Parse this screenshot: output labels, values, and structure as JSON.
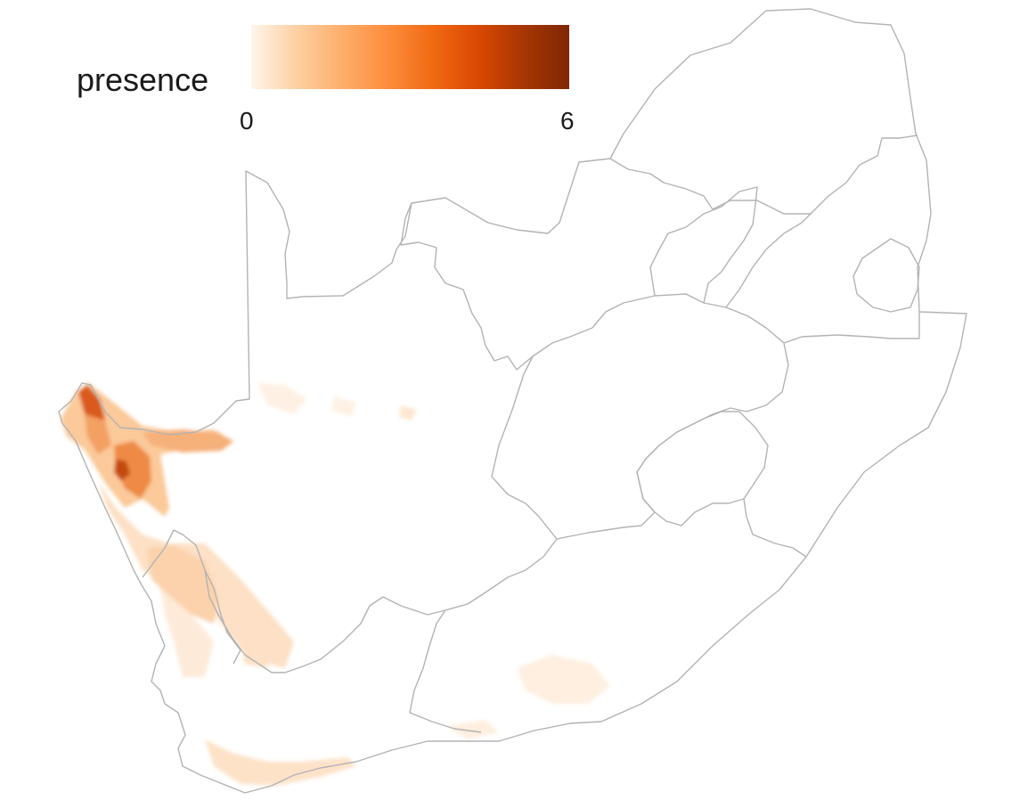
{
  "legend": {
    "title": "presence",
    "min_label": "0",
    "max_label": "6",
    "range": [
      0,
      6
    ],
    "colors": [
      "#fff5eb",
      "#fdd0a2",
      "#fdae6b",
      "#fd8d3c",
      "#f16913",
      "#d94801",
      "#a63603",
      "#7f2704"
    ]
  },
  "map": {
    "boundary_color": "#b3b3b3",
    "background_color": "#ffffff"
  }
}
